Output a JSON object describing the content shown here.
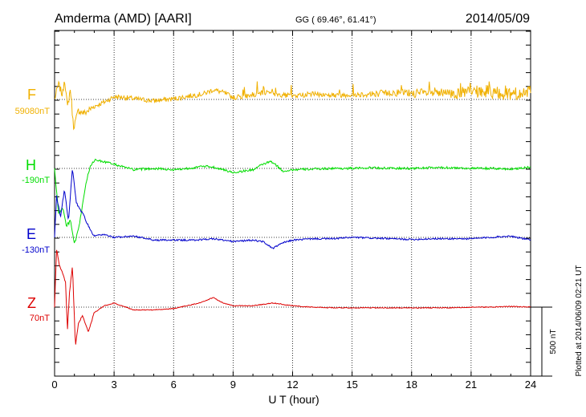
{
  "header": {
    "station": "Amderma (AMD)  [AARI]",
    "coords": "GG ( 69.46°,  61.41°)",
    "date": "2014/05/09"
  },
  "plotted_note": "Plotted at 2014/06/09 02:21  UT",
  "scale_label": "500 nT",
  "colors": {
    "F": "#f0b000",
    "H": "#00dd00",
    "E": "#0000cc",
    "Z": "#dd0000"
  },
  "chart_data": {
    "type": "line",
    "xlabel": "U T (hour)",
    "xlim": [
      0,
      24
    ],
    "xticks": [
      0,
      3,
      6,
      9,
      12,
      15,
      18,
      21,
      24
    ],
    "xtick_labels": [
      "0",
      "3",
      "6",
      "9",
      "12",
      "15",
      "18",
      "21",
      "24"
    ],
    "y_unit": "nT",
    "scale_bar_nT": 500,
    "series": [
      {
        "name": "F",
        "baseline_label": "59080nT",
        "noise_nT": 18,
        "points": [
          [
            0,
            0
          ],
          [
            0.2,
            110
          ],
          [
            0.4,
            30
          ],
          [
            0.5,
            160
          ],
          [
            0.65,
            -60
          ],
          [
            0.8,
            80
          ],
          [
            0.95,
            -200
          ],
          [
            1.05,
            -160
          ],
          [
            1.2,
            -80
          ],
          [
            1.5,
            -100
          ],
          [
            2,
            -50
          ],
          [
            2.5,
            -20
          ],
          [
            3,
            20
          ],
          [
            3.5,
            15
          ],
          [
            4,
            5
          ],
          [
            5,
            -10
          ],
          [
            6,
            5
          ],
          [
            7,
            30
          ],
          [
            7.5,
            40
          ],
          [
            8,
            70
          ],
          [
            8.5,
            50
          ],
          [
            9,
            15
          ],
          [
            10,
            30
          ],
          [
            10.9,
            60
          ],
          [
            11,
            40
          ],
          [
            12,
            25
          ],
          [
            13,
            40
          ],
          [
            14,
            30
          ],
          [
            15,
            35
          ],
          [
            16,
            40
          ],
          [
            17,
            50
          ],
          [
            18,
            45
          ],
          [
            19,
            45
          ],
          [
            20,
            40
          ],
          [
            21,
            55
          ],
          [
            22,
            55
          ],
          [
            23,
            45
          ],
          [
            24,
            40
          ]
        ]
      },
      {
        "name": "H",
        "baseline_label": "-190nT",
        "noise_nT": 8,
        "points": [
          [
            0,
            0
          ],
          [
            0.2,
            -330
          ],
          [
            0.4,
            -280
          ],
          [
            0.6,
            -420
          ],
          [
            0.8,
            -380
          ],
          [
            1,
            -550
          ],
          [
            1.2,
            -450
          ],
          [
            1.4,
            -270
          ],
          [
            1.6,
            -100
          ],
          [
            1.8,
            20
          ],
          [
            2,
            60
          ],
          [
            2.3,
            55
          ],
          [
            3,
            30
          ],
          [
            4,
            -10
          ],
          [
            5,
            0
          ],
          [
            6,
            -10
          ],
          [
            7,
            5
          ],
          [
            7.5,
            15
          ],
          [
            8,
            10
          ],
          [
            8.5,
            -10
          ],
          [
            9,
            -30
          ],
          [
            10,
            -10
          ],
          [
            10.5,
            30
          ],
          [
            10.9,
            50
          ],
          [
            11.2,
            20
          ],
          [
            11.5,
            -20
          ],
          [
            12,
            -10
          ],
          [
            13,
            -5
          ],
          [
            14,
            0
          ],
          [
            15,
            0
          ],
          [
            16,
            5
          ],
          [
            17,
            0
          ],
          [
            18,
            0
          ],
          [
            19,
            5
          ],
          [
            20,
            5
          ],
          [
            21,
            0
          ],
          [
            22,
            0
          ],
          [
            23,
            -5
          ],
          [
            24,
            10
          ]
        ]
      },
      {
        "name": "E",
        "baseline_label": "-130nT",
        "noise_nT": 6,
        "points": [
          [
            0,
            0
          ],
          [
            0.1,
            300
          ],
          [
            0.3,
            150
          ],
          [
            0.5,
            350
          ],
          [
            0.7,
            120
          ],
          [
            0.9,
            500
          ],
          [
            1.1,
            250
          ],
          [
            1.3,
            200
          ],
          [
            1.5,
            150
          ],
          [
            1.8,
            50
          ],
          [
            2,
            10
          ],
          [
            2.5,
            20
          ],
          [
            3,
            0
          ],
          [
            4,
            10
          ],
          [
            5,
            -20
          ],
          [
            6,
            -20
          ],
          [
            7,
            -20
          ],
          [
            8,
            -10
          ],
          [
            9,
            -30
          ],
          [
            10,
            -20
          ],
          [
            10.5,
            -30
          ],
          [
            11,
            -80
          ],
          [
            11.5,
            -40
          ],
          [
            12,
            -20
          ],
          [
            13,
            -10
          ],
          [
            14,
            -10
          ],
          [
            15,
            0
          ],
          [
            16,
            -5
          ],
          [
            17,
            -10
          ],
          [
            18,
            -15
          ],
          [
            19,
            -10
          ],
          [
            20,
            -10
          ],
          [
            21,
            -10
          ],
          [
            22,
            0
          ],
          [
            23,
            10
          ],
          [
            24,
            -20
          ]
        ]
      },
      {
        "name": "Z",
        "baseline_label": "70nT",
        "noise_nT": 3,
        "points": [
          [
            0,
            0
          ],
          [
            0.1,
            420
          ],
          [
            0.25,
            300
          ],
          [
            0.4,
            250
          ],
          [
            0.55,
            180
          ],
          [
            0.65,
            -160
          ],
          [
            0.75,
            100
          ],
          [
            0.9,
            300
          ],
          [
            1.05,
            -280
          ],
          [
            1.2,
            -120
          ],
          [
            1.4,
            -60
          ],
          [
            1.7,
            -180
          ],
          [
            2,
            -40
          ],
          [
            2.5,
            10
          ],
          [
            3,
            30
          ],
          [
            3.5,
            5
          ],
          [
            4,
            -20
          ],
          [
            5,
            -20
          ],
          [
            6,
            -10
          ],
          [
            7,
            20
          ],
          [
            7.5,
            40
          ],
          [
            8,
            70
          ],
          [
            8.5,
            30
          ],
          [
            9,
            10
          ],
          [
            10,
            10
          ],
          [
            11,
            30
          ],
          [
            12,
            10
          ],
          [
            13,
            0
          ],
          [
            14,
            -5
          ],
          [
            15,
            -5
          ],
          [
            16,
            -5
          ],
          [
            17,
            -5
          ],
          [
            18,
            -5
          ],
          [
            19,
            -5
          ],
          [
            20,
            -5
          ],
          [
            21,
            0
          ],
          [
            22,
            0
          ],
          [
            23,
            5
          ],
          [
            24,
            0
          ]
        ]
      }
    ]
  }
}
